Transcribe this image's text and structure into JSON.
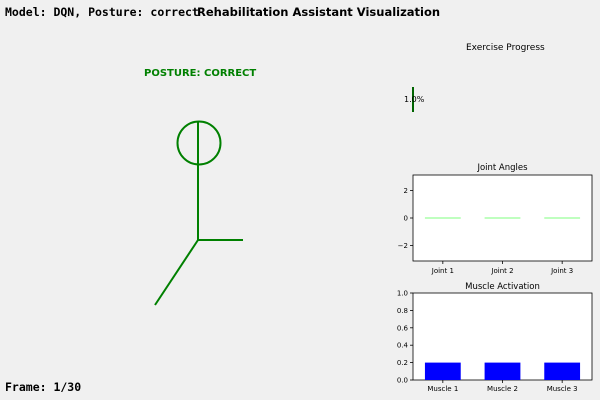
{
  "header": {
    "model_status": "Model: DQN, Posture: correct",
    "title": "Rehabilitation Assistant Visualization"
  },
  "posture": {
    "label": "POSTURE: CORRECT",
    "color": "#008000"
  },
  "frame": {
    "label": "Frame: 1/30"
  },
  "progress": {
    "title": "Exercise Progress",
    "value_label": "1.0%",
    "value": 1.0,
    "color": "#006400"
  },
  "chart_data": [
    {
      "type": "line",
      "title": "Joint Angles",
      "categories": [
        "Joint 1",
        "Joint 2",
        "Joint 3"
      ],
      "values": [
        0,
        0,
        0
      ],
      "yticks": [
        "2",
        "0",
        "−2"
      ],
      "ylim": [
        -3.14,
        3.14
      ],
      "color": "#7fff7f"
    },
    {
      "type": "bar",
      "title": "Muscle Activation",
      "categories": [
        "Muscle 1",
        "Muscle 2",
        "Muscle 3"
      ],
      "values": [
        0.2,
        0.2,
        0.2
      ],
      "yticks": [
        "1.0",
        "0.8",
        "0.6",
        "0.4",
        "0.2",
        "0.0"
      ],
      "ylim": [
        0,
        1
      ],
      "color": "#0000ff"
    }
  ]
}
